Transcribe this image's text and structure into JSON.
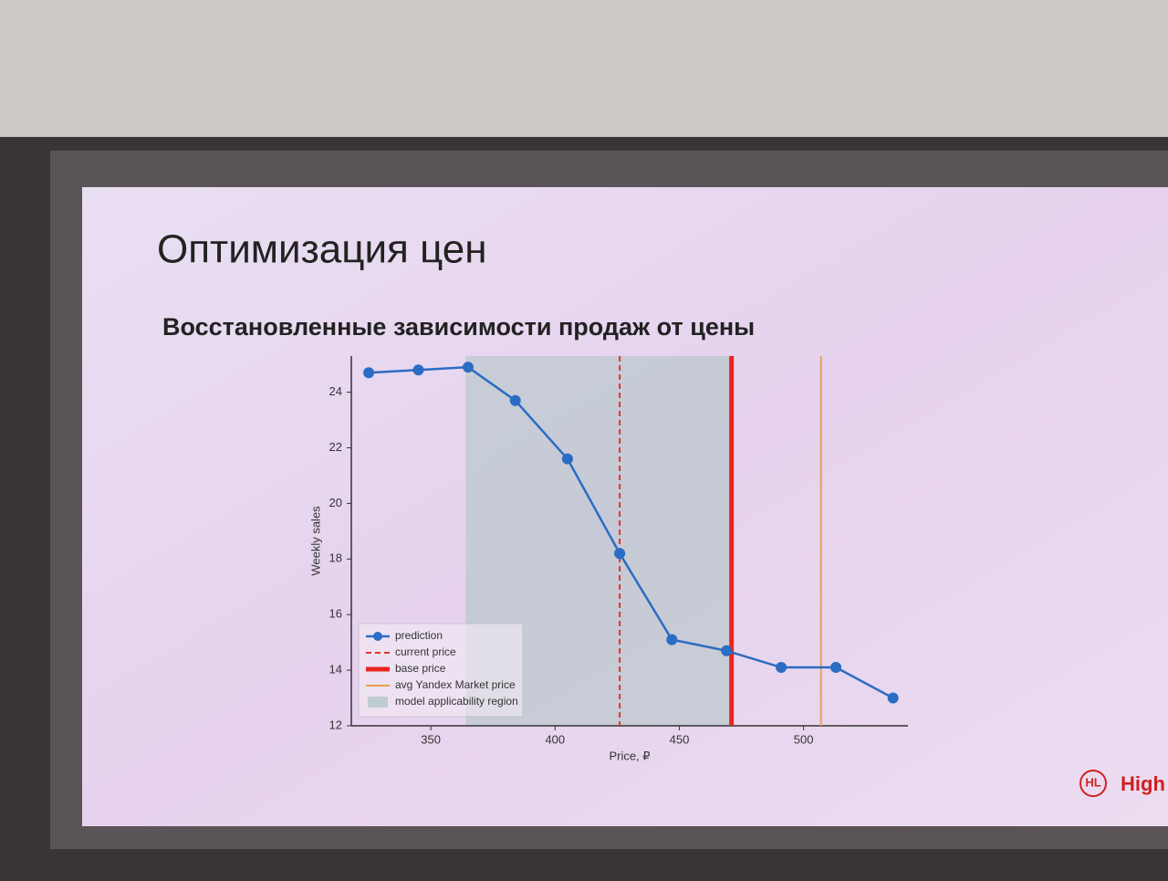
{
  "slide": {
    "title": "Оптимизация цен",
    "logo_mark": "HL",
    "logo_text": "High"
  },
  "chart_data": {
    "type": "line",
    "title": "Восстановленные зависимости продаж от цены",
    "x_label": "Price, ₽",
    "y_label": "Weekly sales",
    "xlim": [
      318,
      542
    ],
    "ylim": [
      12,
      25.3
    ],
    "xticks": [
      350,
      400,
      450,
      500
    ],
    "yticks": [
      12,
      14,
      16,
      18,
      20,
      22,
      24
    ],
    "series": [
      {
        "name": "prediction",
        "color": "#2b6cc4",
        "x": [
          325,
          345,
          365,
          384,
          405,
          426,
          447,
          469,
          491,
          513,
          536
        ],
        "values": [
          24.7,
          24.8,
          24.9,
          23.7,
          21.6,
          18.2,
          15.1,
          14.7,
          14.1,
          14.1,
          13.0
        ]
      }
    ],
    "vlines": [
      {
        "name": "current price",
        "x": 426,
        "color": "#e0352b",
        "style": "dashed"
      },
      {
        "name": "base price",
        "x": 471,
        "color": "#e8261e",
        "style": "thick"
      },
      {
        "name": "avg Yandex Market price",
        "x": 507,
        "color": "#e8a050",
        "style": "thin"
      }
    ],
    "region": {
      "name": "model applicability region",
      "x": [
        364,
        471
      ],
      "color": "#9fc0b8"
    },
    "legend": "lower left"
  }
}
